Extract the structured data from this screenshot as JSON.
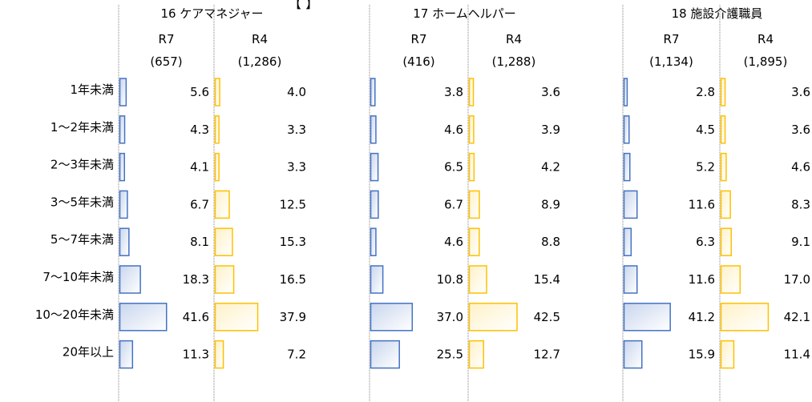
{
  "header_fragment": "【 】",
  "chart_data": {
    "type": "bar",
    "orientation": "horizontal",
    "categories": [
      "1年未満",
      "1～2年未満",
      "2～3年未満",
      "3～5年未満",
      "5～7年未満",
      "7～10年未満",
      "10～20年未満",
      "20年以上"
    ],
    "panels": [
      {
        "title": "16 ケアマネジャー",
        "series": [
          {
            "name": "R7",
            "n_label": "(657)",
            "values": [
              5.6,
              4.3,
              4.1,
              6.7,
              8.1,
              18.3,
              41.6,
              11.3
            ]
          },
          {
            "name": "R4",
            "n_label": "(1,286)",
            "values": [
              4.0,
              3.3,
              3.3,
              12.5,
              15.3,
              16.5,
              37.9,
              7.2
            ]
          }
        ]
      },
      {
        "title": "17 ホームヘルパー",
        "series": [
          {
            "name": "R7",
            "n_label": "(416)",
            "values": [
              3.8,
              4.6,
              6.5,
              6.7,
              4.6,
              10.8,
              37.0,
              25.5
            ]
          },
          {
            "name": "R4",
            "n_label": "(1,288)",
            "values": [
              3.6,
              3.9,
              4.2,
              8.9,
              8.8,
              15.4,
              42.5,
              12.7
            ]
          }
        ]
      },
      {
        "title": "18 施設介護職員",
        "series": [
          {
            "name": "R7",
            "n_label": "(1,134)",
            "values": [
              2.8,
              4.5,
              5.2,
              11.6,
              6.3,
              11.6,
              41.2,
              15.9
            ]
          },
          {
            "name": "R4",
            "n_label": "(1,895)",
            "values": [
              3.6,
              3.6,
              4.6,
              8.3,
              9.1,
              17.0,
              42.1,
              11.4
            ]
          }
        ]
      }
    ],
    "xlim": [
      0,
      100
    ],
    "colors": {
      "R7_fill_start": "#c9d6ee",
      "R7_fill_end": "#ffffff",
      "R7_stroke": "#4472c4",
      "R4_fill_start": "#fff2c8",
      "R4_fill_end": "#ffffff",
      "R4_stroke": "#ffc000",
      "axis": "#808080"
    }
  }
}
